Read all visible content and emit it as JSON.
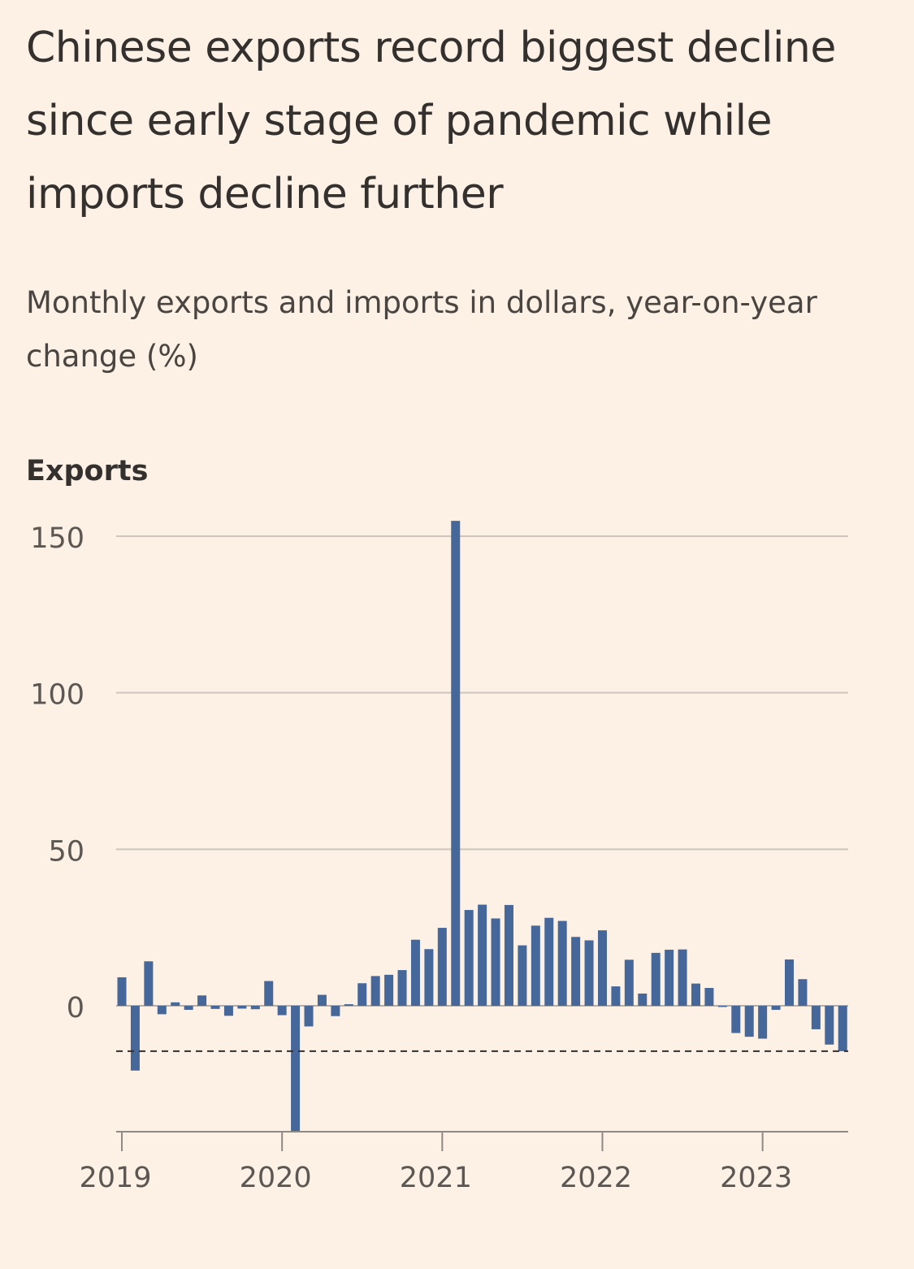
{
  "title": "Chinese exports record biggest decline since early stage of pandemic while imports decline further",
  "subtitle": "Monthly exports and imports in dollars, year-on-year change (%)",
  "colors": {
    "background": "#fdf1e6",
    "bar": "#46679a",
    "gridline": "#cdc5bd",
    "axis": "#8f8a86",
    "reference_line": "#33302e"
  },
  "chart_data": {
    "type": "bar",
    "panel_label": "Exports",
    "x_tick_labels": [
      "2019",
      "2020",
      "2021",
      "2022",
      "2023"
    ],
    "y_tick_labels": [
      "150",
      "100",
      "50",
      "0"
    ],
    "y_ticks": [
      150,
      100,
      50,
      0
    ],
    "ylim": [
      -40,
      150
    ],
    "grid": true,
    "reference_line": {
      "value": -14.5,
      "style": "dashed"
    },
    "categories": [
      "2019-01",
      "2019-02",
      "2019-03",
      "2019-04",
      "2019-05",
      "2019-06",
      "2019-07",
      "2019-08",
      "2019-09",
      "2019-10",
      "2019-11",
      "2019-12",
      "2020-01",
      "2020-02",
      "2020-03",
      "2020-04",
      "2020-05",
      "2020-06",
      "2020-07",
      "2020-08",
      "2020-09",
      "2020-10",
      "2020-11",
      "2020-12",
      "2021-01",
      "2021-02",
      "2021-03",
      "2021-04",
      "2021-05",
      "2021-06",
      "2021-07",
      "2021-08",
      "2021-09",
      "2021-10",
      "2021-11",
      "2021-12",
      "2022-01",
      "2022-02",
      "2022-03",
      "2022-04",
      "2022-05",
      "2022-06",
      "2022-07",
      "2022-08",
      "2022-09",
      "2022-10",
      "2022-11",
      "2022-12",
      "2023-01",
      "2023-02",
      "2023-03",
      "2023-04",
      "2023-05",
      "2023-06",
      "2023-07"
    ],
    "values": [
      9.1,
      -20.7,
      14.2,
      -2.7,
      1.1,
      -1.3,
      3.3,
      -1.0,
      -3.2,
      -0.9,
      -1.1,
      7.9,
      -3.0,
      -40.6,
      -6.6,
      3.5,
      -3.3,
      0.5,
      7.2,
      9.5,
      9.9,
      11.4,
      21.1,
      18.1,
      24.9,
      154.9,
      30.6,
      32.3,
      27.9,
      32.2,
      19.3,
      25.6,
      28.1,
      27.1,
      22.0,
      20.9,
      24.1,
      6.2,
      14.7,
      3.9,
      16.9,
      17.9,
      18.0,
      7.1,
      5.7,
      -0.3,
      -8.7,
      -9.9,
      -10.5,
      -1.3,
      14.8,
      8.5,
      -7.5,
      -12.4,
      -14.5
    ]
  }
}
